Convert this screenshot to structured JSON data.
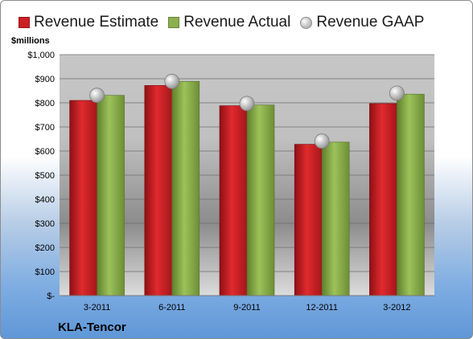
{
  "chart_data": {
    "type": "bar",
    "unit_label": "$millions",
    "company": "KLA-Tencor",
    "categories": [
      "3-2011",
      "6-2011",
      "9-2011",
      "12-2011",
      "3-2012"
    ],
    "series": [
      {
        "name": "Revenue Estimate",
        "kind": "bar",
        "color": "#cc1f24",
        "values": [
          810,
          872,
          788,
          628,
          797
        ]
      },
      {
        "name": "Revenue Actual",
        "kind": "bar",
        "color": "#8db04f",
        "values": [
          831,
          889,
          791,
          637,
          836
        ]
      },
      {
        "name": "Revenue GAAP",
        "kind": "marker",
        "color": "#b8b8b8",
        "values": [
          831,
          889,
          797,
          641,
          840
        ]
      }
    ],
    "y_ticks": [
      "$-",
      "$100",
      "$200",
      "$300",
      "$400",
      "$500",
      "$600",
      "$700",
      "$800",
      "$900",
      "$1,000"
    ],
    "ylim": [
      0,
      1000
    ],
    "grid": true,
    "legend_position": "top"
  }
}
